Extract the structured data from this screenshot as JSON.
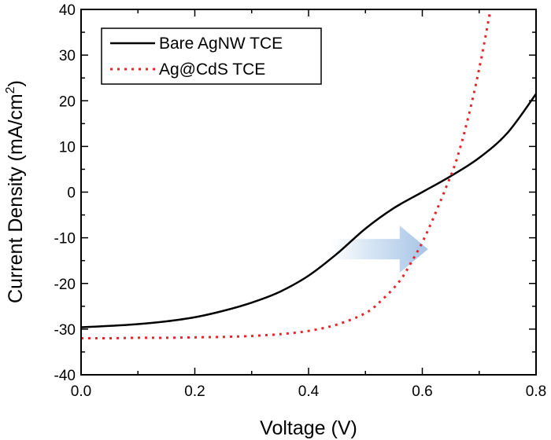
{
  "chart_data": {
    "type": "line",
    "title": "",
    "xlabel": "Voltage (V)",
    "ylabel_main": "Current Density (mA/cm",
    "ylabel_sup": "2",
    "ylabel_close": ")",
    "xlim": [
      0.0,
      0.8
    ],
    "ylim": [
      -40,
      40
    ],
    "xticks": [
      "0.0",
      "0.2",
      "0.4",
      "0.6",
      "0.8"
    ],
    "xtick_values": [
      0.0,
      0.2,
      0.4,
      0.6,
      0.8
    ],
    "yticks": [
      "-40",
      "-30",
      "-20",
      "-10",
      "0",
      "10",
      "20",
      "30",
      "40"
    ],
    "ytick_values": [
      -40,
      -30,
      -20,
      -10,
      0,
      10,
      20,
      30,
      40
    ],
    "grid": false,
    "legend_position": "top-left",
    "series": [
      {
        "name": "Bare AgNW TCE",
        "style": "solid",
        "color": "#000000",
        "x": [
          0.0,
          0.05,
          0.1,
          0.15,
          0.2,
          0.25,
          0.3,
          0.35,
          0.4,
          0.45,
          0.5,
          0.55,
          0.6,
          0.65,
          0.7,
          0.75,
          0.8
        ],
        "y": [
          -29.6,
          -29.3,
          -28.9,
          -28.3,
          -27.4,
          -26.0,
          -24.2,
          -21.8,
          -18.3,
          -13.5,
          -8.0,
          -3.5,
          0.0,
          3.5,
          7.5,
          13.0,
          21.5
        ]
      },
      {
        "name": "Ag@CdS TCE",
        "style": "dotted",
        "color": "#e8262a",
        "x": [
          0.0,
          0.05,
          0.1,
          0.15,
          0.2,
          0.25,
          0.3,
          0.35,
          0.4,
          0.45,
          0.5,
          0.53,
          0.56,
          0.58,
          0.6,
          0.62,
          0.64,
          0.66,
          0.68,
          0.7,
          0.72
        ],
        "y": [
          -32.0,
          -32.0,
          -31.9,
          -31.9,
          -31.8,
          -31.7,
          -31.5,
          -31.1,
          -30.4,
          -29.0,
          -26.5,
          -23.5,
          -19.5,
          -15.5,
          -11.0,
          -5.5,
          0.5,
          7.0,
          16.0,
          27.0,
          40.0
        ]
      }
    ],
    "annotations": [
      {
        "type": "arrow",
        "direction": "right",
        "from": [
          0.44,
          -12.5
        ],
        "to": [
          0.61,
          -12.5
        ],
        "color": "#a9c6e6"
      }
    ]
  }
}
